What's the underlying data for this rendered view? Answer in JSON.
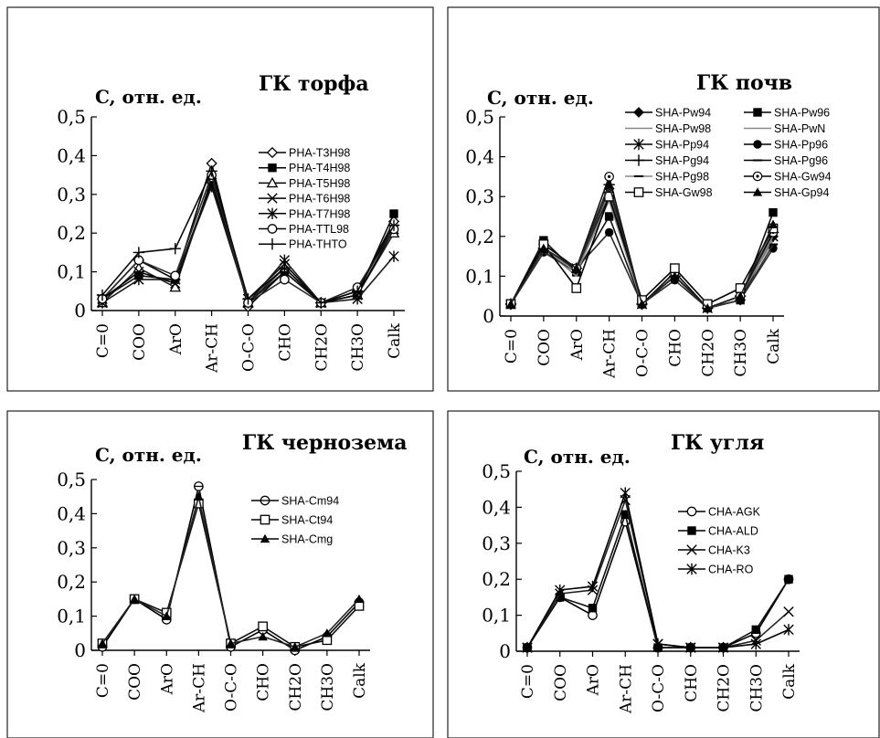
{
  "chart_data": [
    {
      "type": "line",
      "title": "ГК торфа",
      "ylabel": "C, отн. ед.",
      "categories": [
        "C=0",
        "COO",
        "ArO",
        "Ar-CH",
        "O-C-O",
        "CHO",
        "CH2O",
        "CH3O",
        "Calk"
      ],
      "yticks": [
        "0",
        "0,1",
        "0,2",
        "0,3",
        "0,4",
        "0,5"
      ],
      "ylim": [
        0,
        0.5
      ],
      "legend_placement": "right",
      "series": [
        {
          "name": "PHA-T3H98",
          "marker": "diamond-open",
          "values": [
            0.03,
            0.13,
            0.08,
            0.38,
            0.01,
            0.1,
            0.02,
            0.05,
            0.23
          ]
        },
        {
          "name": "PHA-T4H98",
          "marker": "square-filled",
          "values": [
            0.03,
            0.09,
            0.08,
            0.33,
            0.02,
            0.1,
            0.02,
            0.04,
            0.25
          ]
        },
        {
          "name": "PHA-T5H98",
          "marker": "triangle-open",
          "values": [
            0.02,
            0.11,
            0.06,
            0.34,
            0.02,
            0.11,
            0.02,
            0.04,
            0.2
          ]
        },
        {
          "name": "PHA-T6H98",
          "marker": "x",
          "values": [
            0.03,
            0.1,
            0.07,
            0.33,
            0.03,
            0.12,
            0.02,
            0.04,
            0.21
          ]
        },
        {
          "name": "PHA-T7H98",
          "marker": "asterisk",
          "values": [
            0.02,
            0.08,
            0.08,
            0.32,
            0.02,
            0.13,
            0.02,
            0.03,
            0.14
          ]
        },
        {
          "name": "PHA-TTL98",
          "marker": "circle-open",
          "values": [
            0.03,
            0.13,
            0.09,
            0.35,
            0.02,
            0.08,
            0.02,
            0.06,
            0.21
          ]
        },
        {
          "name": "PHA-THTO",
          "marker": "plus",
          "values": [
            0.04,
            0.15,
            0.16,
            0.36,
            0.03,
            0.11,
            0.02,
            0.05,
            0.22
          ]
        }
      ]
    },
    {
      "type": "line",
      "title": "ГК почв",
      "ylabel": "C, отн. ед.",
      "categories": [
        "C=0",
        "COO",
        "ArO",
        "Ar-CH",
        "O-C-O",
        "CHO",
        "CH2O",
        "CH3O",
        "Calk"
      ],
      "yticks": [
        "0",
        "0,1",
        "0,2",
        "0,3",
        "0,4",
        "0,5"
      ],
      "ylim": [
        0,
        0.5
      ],
      "legend_placement": "top-right",
      "series": [
        {
          "name": "SHA-Pw94",
          "marker": "diamond-filled",
          "values": [
            0.03,
            0.18,
            0.12,
            0.32,
            0.03,
            0.1,
            0.02,
            0.04,
            0.2
          ]
        },
        {
          "name": "SHA-Pw96",
          "marker": "square-filled",
          "values": [
            0.03,
            0.19,
            0.11,
            0.25,
            0.03,
            0.1,
            0.02,
            0.04,
            0.26
          ]
        },
        {
          "name": "SHA-Pw98",
          "marker": "none",
          "values": [
            0.03,
            0.17,
            0.1,
            0.33,
            0.03,
            0.11,
            0.02,
            0.05,
            0.19
          ]
        },
        {
          "name": "SHA-PwN",
          "marker": "none",
          "values": [
            0.03,
            0.16,
            0.11,
            0.31,
            0.03,
            0.1,
            0.02,
            0.05,
            0.22
          ]
        },
        {
          "name": "SHA-Pp94",
          "marker": "asterisk",
          "values": [
            0.03,
            0.17,
            0.12,
            0.3,
            0.03,
            0.1,
            0.02,
            0.05,
            0.2
          ]
        },
        {
          "name": "SHA-Pp96",
          "marker": "circle-filled",
          "values": [
            0.03,
            0.16,
            0.12,
            0.21,
            0.03,
            0.09,
            0.02,
            0.04,
            0.17
          ]
        },
        {
          "name": "SHA-Pg94",
          "marker": "plus",
          "values": [
            0.03,
            0.17,
            0.12,
            0.33,
            0.03,
            0.1,
            0.02,
            0.05,
            0.21
          ]
        },
        {
          "name": "SHA-Pg96",
          "marker": "dash",
          "values": [
            0.03,
            0.16,
            0.11,
            0.32,
            0.03,
            0.1,
            0.02,
            0.04,
            0.18
          ]
        },
        {
          "name": "SHA-Pg98",
          "marker": "dash",
          "values": [
            0.03,
            0.17,
            0.11,
            0.29,
            0.03,
            0.1,
            0.02,
            0.05,
            0.2
          ]
        },
        {
          "name": "SHA-Gw94",
          "marker": "circle-dot",
          "values": [
            0.03,
            0.17,
            0.12,
            0.35,
            0.03,
            0.11,
            0.02,
            0.05,
            0.21
          ]
        },
        {
          "name": "SHA-Gw98",
          "marker": "square-open",
          "values": [
            0.03,
            0.18,
            0.07,
            0.3,
            0.04,
            0.12,
            0.03,
            0.07,
            0.22
          ]
        },
        {
          "name": "SHA-Gp94",
          "marker": "triangle-filled",
          "values": [
            0.03,
            0.17,
            0.12,
            0.33,
            0.03,
            0.1,
            0.02,
            0.05,
            0.23
          ]
        }
      ]
    },
    {
      "type": "line",
      "title": "ГК чернозема",
      "ylabel": "C, отн. ед.",
      "categories": [
        "C=0",
        "COO",
        "ArO",
        "Ar-CH",
        "O-C-O",
        "CHO",
        "CH2O",
        "CH3O",
        "Calk"
      ],
      "yticks": [
        "0",
        "0,1",
        "0,2",
        "0,3",
        "0,4",
        "0,5"
      ],
      "ylim": [
        0,
        0.5
      ],
      "legend_placement": "right",
      "series": [
        {
          "name": "SHA-Cm94",
          "marker": "circle-bar",
          "values": [
            0.01,
            0.15,
            0.09,
            0.48,
            0.01,
            0.06,
            0.0,
            0.04,
            0.14
          ]
        },
        {
          "name": "SHA-Ct94",
          "marker": "square-open",
          "values": [
            0.02,
            0.15,
            0.11,
            0.43,
            0.02,
            0.07,
            0.01,
            0.03,
            0.13
          ]
        },
        {
          "name": "SHA-Cmg",
          "marker": "triangle-filled",
          "values": [
            0.02,
            0.15,
            0.1,
            0.45,
            0.02,
            0.04,
            0.01,
            0.05,
            0.15
          ]
        }
      ]
    },
    {
      "type": "line",
      "title": "ГК угля",
      "ylabel": "C, отн. ед.",
      "categories": [
        "C=0",
        "COO",
        "ArO",
        "Ar-CH",
        "O-C-O",
        "CHO",
        "CH2O",
        "CH3O",
        "Calk"
      ],
      "yticks": [
        "0",
        "0,1",
        "0,2",
        "0,3",
        "0,4",
        "0,5"
      ],
      "ylim": [
        0,
        0.5
      ],
      "legend_placement": "right",
      "series": [
        {
          "name": "CHA-AGK",
          "marker": "circle-open",
          "values": [
            0.01,
            0.15,
            0.1,
            0.36,
            0.01,
            0.01,
            0.01,
            0.05,
            0.2
          ]
        },
        {
          "name": "CHA-ALD",
          "marker": "square-filled",
          "values": [
            0.01,
            0.15,
            0.12,
            0.38,
            0.01,
            0.01,
            0.01,
            0.06,
            0.2
          ]
        },
        {
          "name": "CHA-K3",
          "marker": "x",
          "values": [
            0.01,
            0.16,
            0.17,
            0.42,
            0.02,
            0.01,
            0.01,
            0.03,
            0.11
          ]
        },
        {
          "name": "CHA-RO",
          "marker": "asterisk",
          "values": [
            0.01,
            0.17,
            0.18,
            0.44,
            0.02,
            0.01,
            0.01,
            0.02,
            0.06
          ]
        }
      ]
    }
  ]
}
